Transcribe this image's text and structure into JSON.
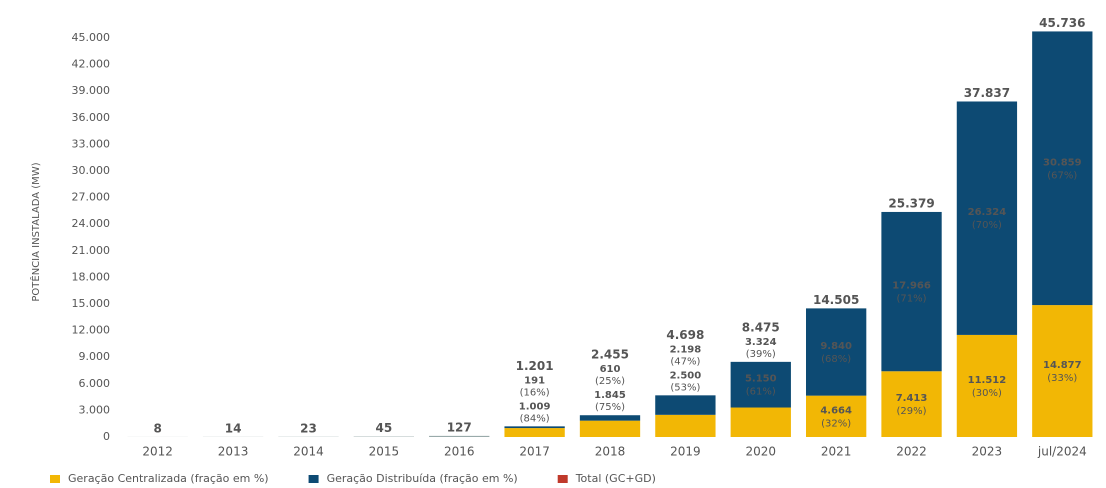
{
  "chart_data": {
    "type": "stacked-bar",
    "y_label": "POTÊNCIA INSTALADA (MW)",
    "categories": [
      "2012",
      "2013",
      "2014",
      "2015",
      "2016",
      "2017",
      "2018",
      "2019",
      "2020",
      "2021",
      "2022",
      "2023",
      "jul/2024"
    ],
    "series": [
      {
        "name": "Geração Centralizada (fração em %)",
        "color": "#f2b705",
        "values": [
          null,
          null,
          null,
          null,
          null,
          1009,
          1845,
          2500,
          3324,
          4664,
          7413,
          11512,
          14877
        ],
        "value_labels": [
          null,
          null,
          null,
          null,
          null,
          "1.009",
          "1.845",
          "2.500",
          "3.324",
          "4.664",
          "7.413",
          "11.512",
          "14.877"
        ],
        "share_labels": [
          null,
          null,
          null,
          null,
          null,
          "(84%)",
          "(75%)",
          "(53%)",
          "(39%)",
          "(32%)",
          "(29%)",
          "(30%)",
          "(33%)"
        ]
      },
      {
        "name": "Geração Distribuída (fração em %)",
        "color": "#0d4a73",
        "values": [
          null,
          null,
          null,
          null,
          null,
          191,
          610,
          2198,
          5150,
          9840,
          17966,
          26324,
          30859
        ],
        "value_labels": [
          null,
          null,
          null,
          null,
          null,
          "191",
          "610",
          "2.198",
          "5.150",
          "9.840",
          "17.966",
          "26.324",
          "30.859"
        ],
        "share_labels": [
          null,
          null,
          null,
          null,
          null,
          "(16%)",
          "(25%)",
          "(47%)",
          "(61%)",
          "(68%)",
          "(71%)",
          "(70%)",
          "(67%)"
        ]
      }
    ],
    "total": {
      "name": "Total (GC+GD)",
      "color": "#c0392b",
      "values": [
        8,
        14,
        23,
        45,
        127,
        1201,
        2455,
        4698,
        8475,
        14505,
        25379,
        37837,
        45736
      ],
      "value_labels": [
        "8",
        "14",
        "23",
        "45",
        "127",
        "1.201",
        "2.455",
        "4.698",
        "8.475",
        "14.505",
        "25.379",
        "37.837",
        "45.736"
      ]
    },
    "ylim": [
      0,
      46800
    ],
    "yticks": [
      0,
      {
        "value": 3000,
        "label": "3.000"
      },
      {
        "value": 6000,
        "label": "6.000"
      },
      {
        "value": 9000,
        "label": "9.000"
      },
      {
        "value": 12000,
        "label": "12.000"
      },
      {
        "value": 15000,
        "label": "15.000"
      },
      {
        "value": 18000,
        "label": "18.000"
      },
      {
        "value": 21000,
        "label": "21.000"
      },
      {
        "value": 24000,
        "label": "24.000"
      },
      {
        "value": 27000,
        "label": "27.000"
      },
      {
        "value": 30000,
        "label": "30.000"
      },
      {
        "value": 33000,
        "label": "33.000"
      },
      {
        "value": 36000,
        "label": "36.000"
      },
      {
        "value": 39000,
        "label": "39.000"
      },
      {
        "value": 42000,
        "label": "42.000"
      },
      {
        "value": 45000,
        "label": "45.000"
      }
    ],
    "grid": false
  }
}
